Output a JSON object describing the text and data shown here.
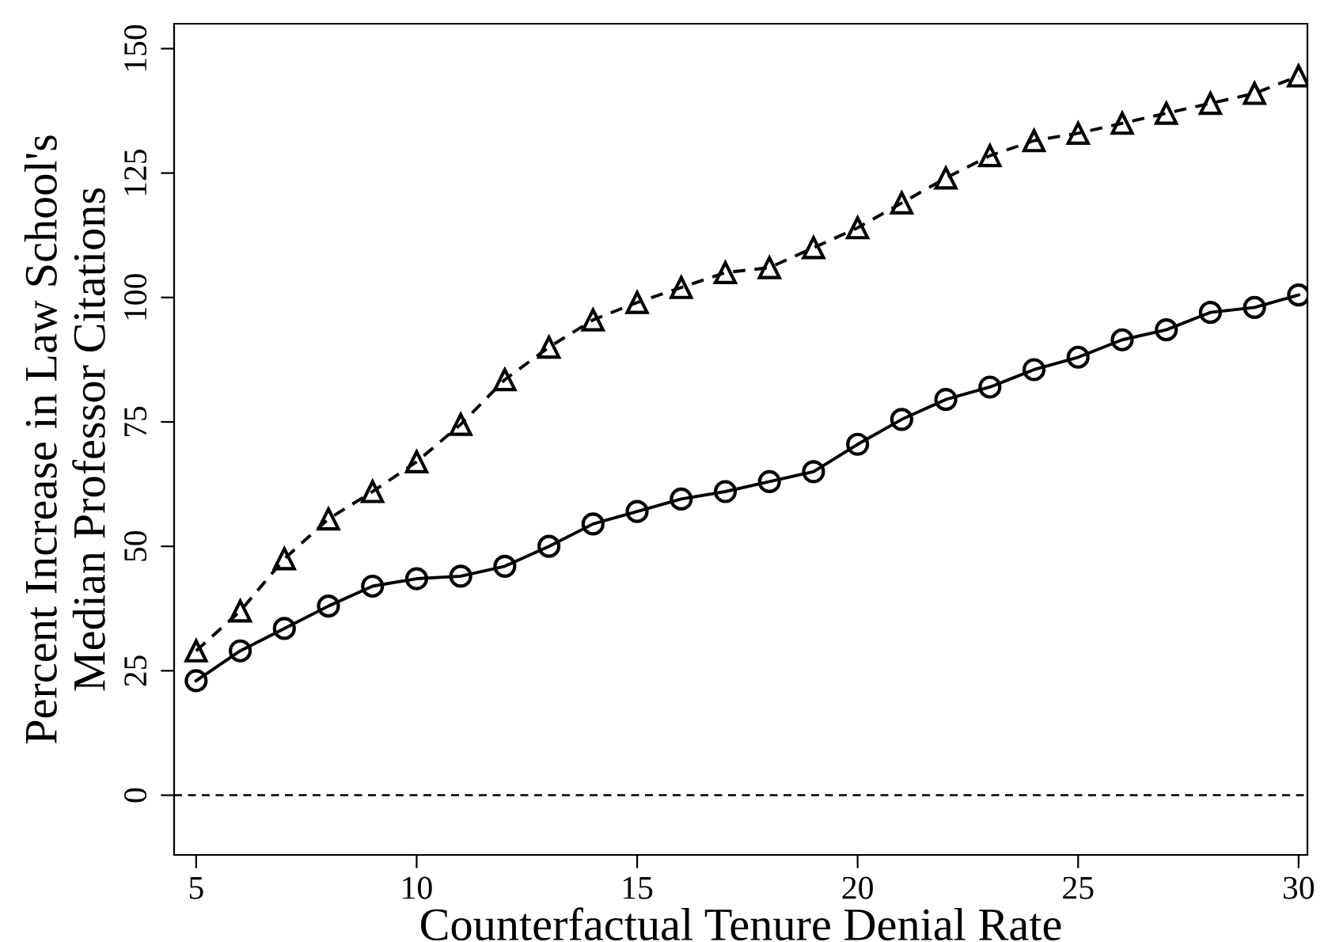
{
  "chart_data": {
    "type": "line",
    "xlabel": "Counterfactual Tenure Denial Rate",
    "ylabel": "Percent Increase in Law School's\nMedian Professor Citations",
    "x": [
      5,
      6,
      7,
      8,
      9,
      10,
      11,
      12,
      13,
      14,
      15,
      16,
      17,
      18,
      19,
      20,
      21,
      22,
      23,
      24,
      25,
      26,
      27,
      28,
      29,
      30
    ],
    "series": [
      {
        "color": "#000000",
        "marker": "triangle",
        "line_style": "dashed",
        "values": [
          29,
          37,
          47.5,
          55.5,
          61,
          67,
          74.5,
          83.5,
          90,
          95.5,
          99,
          102,
          105,
          106,
          110,
          114,
          119,
          124,
          128.5,
          131.5,
          133,
          135,
          137,
          139,
          141,
          144.5
        ]
      },
      {
        "color": "#000000",
        "marker": "circle",
        "line_style": "solid",
        "values": [
          23,
          29,
          33.5,
          38,
          42,
          43.5,
          44,
          46,
          50,
          54.5,
          57,
          59.5,
          61,
          63,
          65,
          70.5,
          75.5,
          79.5,
          82,
          85.5,
          88,
          91.5,
          93.5,
          97,
          98,
          100.5
        ]
      }
    ],
    "xlim": [
      4.5,
      30.2
    ],
    "ylim": [
      -12,
      155
    ],
    "xticks": [
      5,
      10,
      15,
      20,
      25,
      30
    ],
    "yticks": [
      0,
      25,
      50,
      75,
      100,
      125,
      150
    ],
    "ref_lines": [
      {
        "axis": "y",
        "value": 0,
        "color": "#000000",
        "line_style": "dashed"
      }
    ],
    "grid": false,
    "legend": false
  }
}
